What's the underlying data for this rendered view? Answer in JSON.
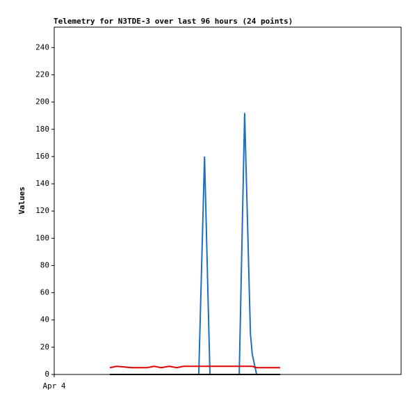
{
  "chart_data": {
    "type": "line",
    "title": "Telemetry for N3TDE-3 over last 96 hours (24 points)",
    "y_label": "Values",
    "x": [
      15.4,
      17.3,
      19.4,
      21.5,
      23.5,
      25.6,
      27.7,
      29.6,
      31.8,
      33.9,
      35.8,
      37.9,
      40.0,
      41.6,
      43.1,
      45.0,
      47.1,
      49.3,
      51.2,
      52.7,
      54.3,
      54.8,
      56.0,
      62.5
    ],
    "xlim": [
      0,
      96
    ],
    "xticks": [
      {
        "value": 0,
        "label": "Apr 4"
      }
    ],
    "ylim": [
      0,
      255
    ],
    "yticks": [
      0,
      20,
      40,
      60,
      80,
      100,
      120,
      140,
      160,
      180,
      200,
      220,
      240
    ],
    "series": [
      {
        "color": "#1a6fc4",
        "values": [
          0,
          0,
          0,
          0,
          0,
          0,
          0,
          0,
          0,
          0,
          0,
          0,
          0,
          160,
          0,
          0,
          0,
          0,
          0,
          192,
          30,
          15,
          0,
          0
        ]
      },
      {
        "color": "#e00000",
        "values": [
          5,
          6,
          5.5,
          5,
          5,
          5,
          6,
          5,
          6,
          5,
          6,
          6,
          6,
          6,
          6,
          6,
          6,
          6,
          6,
          6,
          6,
          6,
          5,
          5
        ]
      },
      {
        "color": "#000000",
        "values": [
          0,
          0,
          0,
          0,
          0,
          0,
          0,
          0,
          0,
          0,
          0,
          0,
          0,
          0,
          0,
          0,
          0,
          0,
          0,
          0,
          0,
          0,
          0,
          0
        ]
      }
    ]
  }
}
